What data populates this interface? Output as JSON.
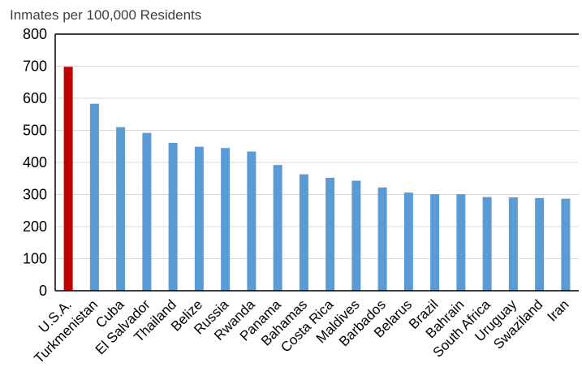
{
  "chart_data": {
    "type": "bar",
    "title": "",
    "ylabel": "Inmates per 100,000 Residents",
    "xlabel": "",
    "ylim": [
      0,
      800
    ],
    "yticks": [
      0,
      100,
      200,
      300,
      400,
      500,
      600,
      700,
      800
    ],
    "grid": true,
    "categories": [
      "U.S.A.",
      "Turkmenistan",
      "Cuba",
      "El Salvador",
      "Thailand",
      "Belize",
      "Russia",
      "Rwanda",
      "Panama",
      "Bahamas",
      "Costa Rica",
      "Maldives",
      "Barbados",
      "Belarus",
      "Brazil",
      "Bahrain",
      "South Africa",
      "Uruguay",
      "Swaziland",
      "Iran"
    ],
    "values": [
      698,
      583,
      510,
      492,
      461,
      449,
      445,
      434,
      392,
      363,
      352,
      343,
      322,
      306,
      301,
      301,
      292,
      291,
      289,
      287
    ],
    "highlight_color": "#c00000",
    "bar_color": "#5b9bd5"
  }
}
